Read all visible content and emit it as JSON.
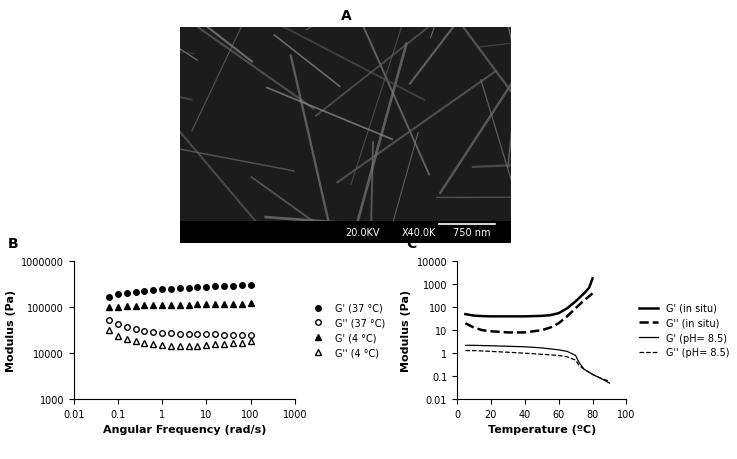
{
  "image": {
    "label": "A",
    "texts": [
      "20.0KV",
      "X40.0K",
      "750 nm"
    ]
  },
  "chart_data": [
    {
      "type": "scatter",
      "title": "B",
      "x_label": "Angular Frequency (rad/s)",
      "y_label": "Modulus (Pa)",
      "log": true,
      "legend": "right",
      "xlim": [
        0.01,
        1000
      ],
      "xticks": [
        0.01,
        0.1,
        1,
        10,
        100,
        1000
      ],
      "ylim": [
        1000,
        1000000
      ],
      "yticks": [
        1000,
        10000,
        100000,
        1000000
      ],
      "x": [
        0.0628,
        0.0995,
        0.158,
        0.25,
        0.397,
        0.628,
        0.995,
        1.58,
        2.5,
        3.97,
        6.28,
        9.95,
        15.8,
        25,
        39.7,
        62.8,
        100
      ],
      "series": [
        {
          "name": "G' (37 °C)",
          "color": "#000000",
          "marker": "circle",
          "values": [
            170000,
            190000,
            205000,
            215000,
            225000,
            235000,
            245000,
            252000,
            260000,
            267000,
            273000,
            280000,
            285000,
            290000,
            295000,
            300000,
            305000
          ]
        },
        {
          "name": "G'' (37 °C)",
          "color": "#000000",
          "marker": "circle-open",
          "values": [
            52000,
            43000,
            38000,
            34000,
            31000,
            29000,
            28000,
            27000,
            26500,
            26000,
            25500,
            25500,
            25500,
            25000,
            25000,
            25000,
            25000
          ]
        },
        {
          "name": "G' (4 °C)",
          "color": "#000000",
          "marker": "triangle",
          "values": [
            100000,
            103000,
            105000,
            107000,
            109000,
            110000,
            111000,
            112000,
            113000,
            114000,
            115000,
            116000,
            117000,
            118000,
            119000,
            120000,
            122000
          ]
        },
        {
          "name": "G'' (4 °C)",
          "color": "#000000",
          "marker": "triangle-open",
          "values": [
            32000,
            24000,
            20000,
            18000,
            16500,
            15500,
            15000,
            14500,
            14500,
            14500,
            14500,
            15000,
            15500,
            16000,
            16500,
            17000,
            18000
          ]
        }
      ]
    },
    {
      "type": "line",
      "title": "C",
      "x_label": "Temperature (ºC)",
      "y_label": "Modulus (Pa)",
      "log": "y",
      "legend": "right",
      "xlim": [
        0,
        100
      ],
      "xticks": [
        0,
        20,
        40,
        60,
        80,
        100
      ],
      "ylim": [
        0.01,
        10000
      ],
      "yticks": [
        0.01,
        0.1,
        1,
        10,
        100,
        1000,
        10000
      ],
      "series": [
        {
          "name": "G' (in situ)",
          "color": "#000000",
          "line_style": "solid",
          "x": [
            5,
            10,
            15,
            20,
            30,
            40,
            50,
            55,
            60,
            65,
            70,
            75,
            78,
            80
          ],
          "values": [
            50,
            43,
            41,
            40,
            40,
            40,
            42,
            45,
            55,
            90,
            180,
            400,
            700,
            1800
          ]
        },
        {
          "name": "G'' (in situ)",
          "color": "#000000",
          "line_style": "dashed",
          "x": [
            5,
            10,
            15,
            20,
            30,
            40,
            50,
            55,
            60,
            65,
            70,
            75,
            78,
            80
          ],
          "values": [
            20,
            13,
            10,
            9,
            8,
            8,
            10,
            13,
            20,
            40,
            90,
            200,
            300,
            400
          ]
        },
        {
          "name": "G' (pH= 8.5)",
          "color": "#000000",
          "line_style": "solid",
          "x": [
            5,
            10,
            20,
            30,
            40,
            50,
            60,
            65,
            70,
            72,
            75,
            80,
            85,
            90
          ],
          "values": [
            2.2,
            2.2,
            2.1,
            2,
            1.9,
            1.7,
            1.4,
            1.2,
            0.8,
            0.4,
            0.2,
            0.12,
            0.08,
            0.05
          ]
        },
        {
          "name": "G'' (pH= 8.5)",
          "color": "#000000",
          "line_style": "dashed",
          "x": [
            5,
            10,
            20,
            30,
            40,
            50,
            60,
            65,
            70,
            72,
            75,
            80,
            85,
            90
          ],
          "values": [
            1.3,
            1.3,
            1.2,
            1.1,
            1.0,
            0.9,
            0.8,
            0.7,
            0.5,
            0.3,
            0.2,
            0.12,
            0.08,
            0.06
          ]
        }
      ]
    }
  ]
}
